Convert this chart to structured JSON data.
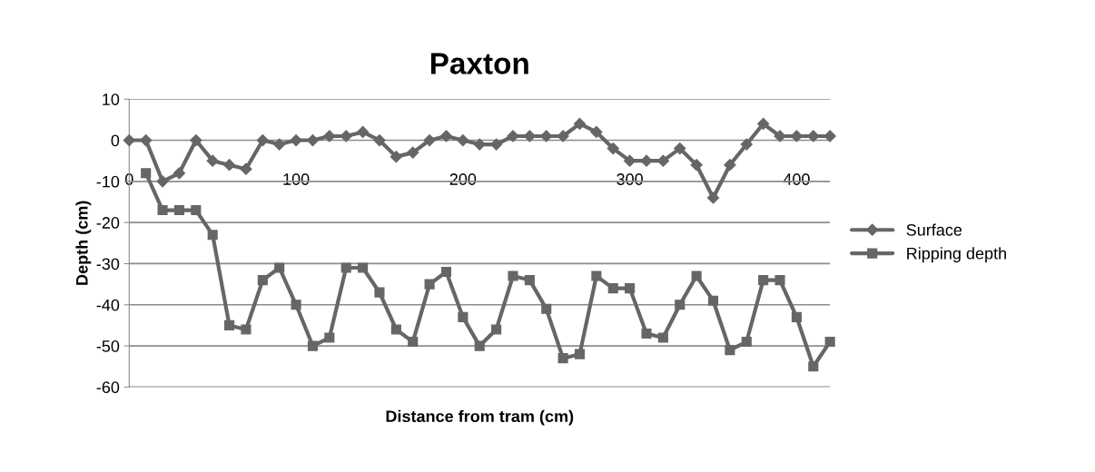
{
  "chart_data": {
    "type": "line",
    "title": "Paxton",
    "xlabel": "Distance from tram (cm)",
    "ylabel": "Depth (cm)",
    "xlim": [
      0,
      420
    ],
    "xticks": [
      0,
      100,
      200,
      300,
      400
    ],
    "ylim": [
      -60,
      10
    ],
    "yticks": [
      -60,
      -50,
      -40,
      -30,
      -20,
      -10,
      0,
      10
    ],
    "grid": "y",
    "legend": "right",
    "series": [
      {
        "name": "Surface",
        "color": "#666666",
        "marker": "diamond",
        "x": [
          0,
          10,
          20,
          30,
          40,
          50,
          60,
          70,
          80,
          90,
          100,
          110,
          120,
          130,
          140,
          150,
          160,
          170,
          180,
          190,
          200,
          210,
          220,
          230,
          240,
          250,
          260,
          270,
          280,
          290,
          300,
          310,
          320,
          330,
          340,
          350,
          360,
          370,
          380,
          390,
          400,
          410,
          420
        ],
        "values": [
          0,
          0,
          -10,
          -8,
          0,
          -5,
          -6,
          -7,
          0,
          -1,
          0,
          0,
          1,
          1,
          2,
          0,
          -4,
          -3,
          0,
          1,
          0,
          -1,
          -1,
          1,
          1,
          1,
          1,
          4,
          2,
          -2,
          -5,
          -5,
          -5,
          -2,
          -6,
          -14,
          -6,
          -1,
          4,
          1,
          1,
          1,
          1
        ]
      },
      {
        "name": "Ripping depth",
        "color": "#666666",
        "marker": "square",
        "x": [
          10,
          20,
          30,
          40,
          50,
          60,
          70,
          80,
          90,
          100,
          110,
          120,
          130,
          140,
          150,
          160,
          170,
          180,
          190,
          200,
          210,
          220,
          230,
          240,
          250,
          260,
          270,
          280,
          290,
          300,
          310,
          320,
          330,
          340,
          350,
          360,
          370,
          380,
          390,
          400,
          410,
          420
        ],
        "values": [
          -8,
          -17,
          -17,
          -17,
          -23,
          -45,
          -46,
          -34,
          -31,
          -40,
          -50,
          -48,
          -31,
          -31,
          -37,
          -46,
          -49,
          -35,
          -32,
          -43,
          -50,
          -46,
          -33,
          -34,
          -41,
          -53,
          -52,
          -33,
          -36,
          -36,
          -47,
          -48,
          -40,
          -33,
          -39,
          -51,
          -49,
          -34,
          -34,
          -43,
          -55,
          -49
        ]
      }
    ]
  }
}
